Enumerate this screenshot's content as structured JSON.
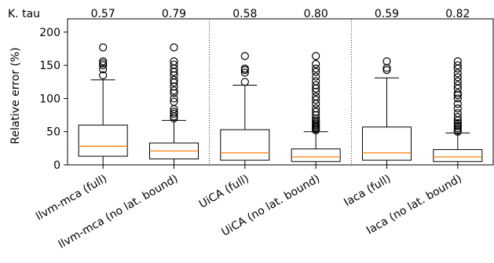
{
  "chart_data": {
    "type": "box",
    "ylabel": "Relative error (%)",
    "ylim": [
      0,
      220
    ],
    "yticks": [
      0,
      50,
      100,
      150,
      200
    ],
    "grid": false,
    "top_row_label": "K. tau",
    "categories": [
      "llvm-mca (full)",
      "llvm-mca (no lat. bound)",
      "UiCA (full)",
      "UiCA (no lat. bound)",
      "Iaca (full)",
      "Iaca (no lat. bound)"
    ],
    "kendall_tau": [
      "0.57",
      "0.79",
      "0.58",
      "0.80",
      "0.59",
      "0.82"
    ],
    "groups_separated_after": [
      1,
      3
    ],
    "boxes": [
      {
        "whisker_low": 0,
        "q1": 13,
        "median": 28,
        "q3": 60,
        "whisker_high": 128,
        "outliers": [
          135,
          144,
          150,
          153,
          156,
          177
        ]
      },
      {
        "whisker_low": 0,
        "q1": 9,
        "median": 21,
        "q3": 33,
        "whisker_high": 67,
        "outliers": [
          70,
          73,
          77,
          80,
          84,
          95,
          100,
          108,
          112,
          118,
          124,
          128,
          135,
          140,
          145,
          151,
          156,
          177
        ]
      },
      {
        "whisker_low": 0,
        "q1": 7,
        "median": 18,
        "q3": 53,
        "whisker_high": 120,
        "outliers": [
          125,
          139,
          143,
          145,
          164
        ]
      },
      {
        "whisker_low": 0,
        "q1": 5,
        "median": 12,
        "q3": 24,
        "whisker_high": 50,
        "outliers": [
          52,
          54,
          56,
          58,
          60,
          62,
          64,
          67,
          70,
          75,
          80,
          85,
          92,
          98,
          103,
          110,
          115,
          120,
          126,
          133,
          140,
          145,
          152,
          164
        ]
      },
      {
        "whisker_low": 0,
        "q1": 7,
        "median": 18,
        "q3": 57,
        "whisker_high": 131,
        "outliers": [
          143,
          146,
          156
        ]
      },
      {
        "whisker_low": 0,
        "q1": 5,
        "median": 12,
        "q3": 23,
        "whisker_high": 48,
        "outliers": [
          50,
          52,
          55,
          58,
          60,
          63,
          67,
          72,
          78,
          85,
          92,
          100,
          105,
          108,
          115,
          120,
          126,
          132,
          138,
          145,
          150,
          156
        ]
      }
    ],
    "colors": {
      "box": "#000000",
      "median": "#ff7f0e",
      "outlier": "#000000"
    }
  }
}
